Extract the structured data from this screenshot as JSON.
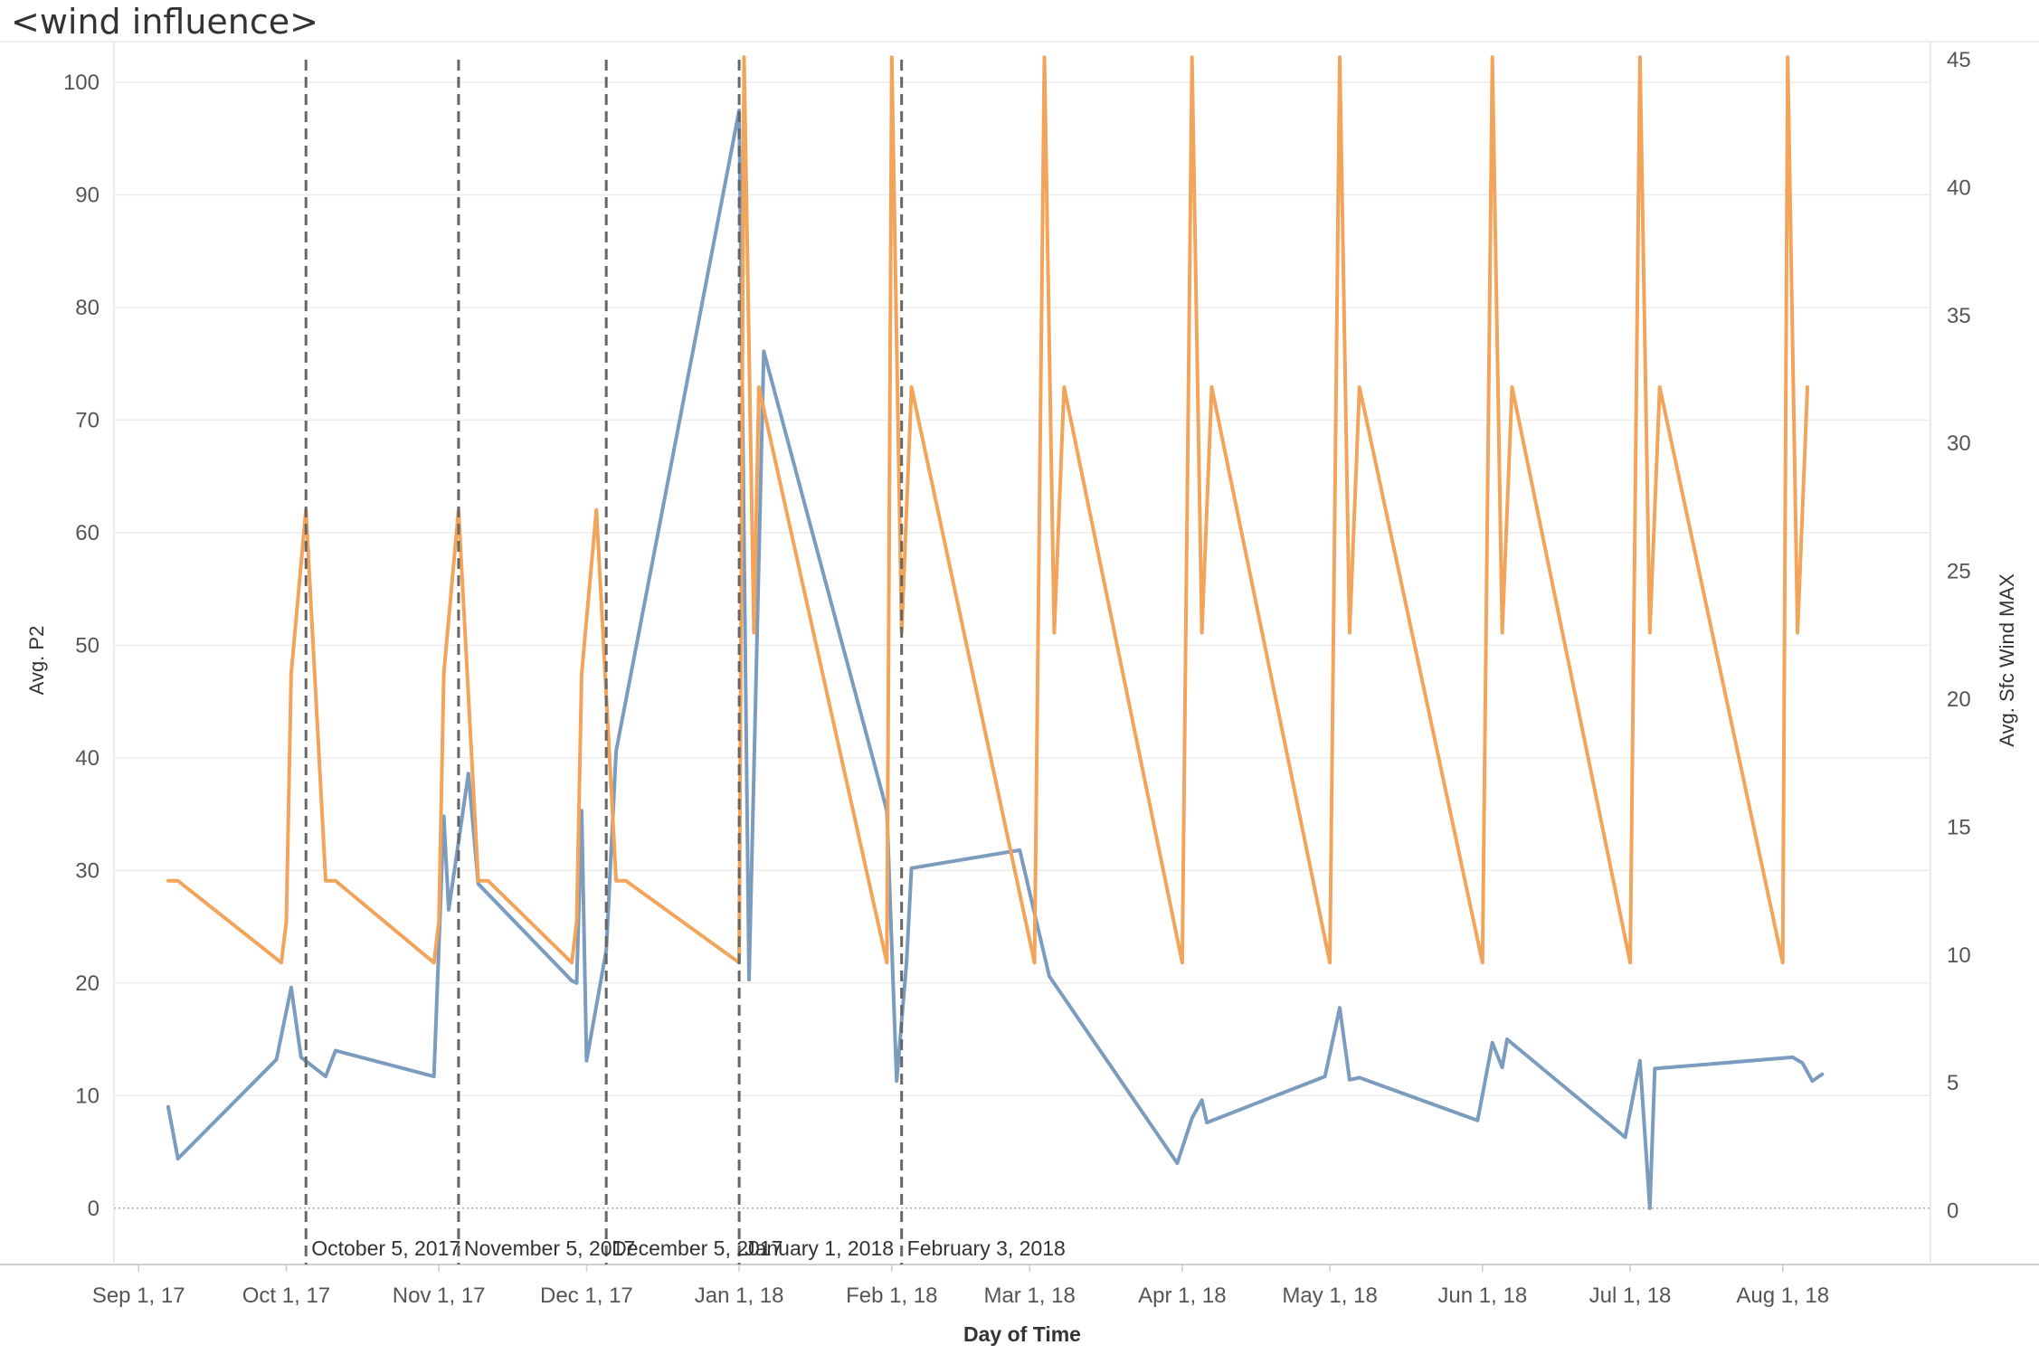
{
  "title": "<wind influence>",
  "chart_data": {
    "type": "line",
    "title": "<wind influence>",
    "xlabel": "Day of Time",
    "ylabel_left": "Avg. P2",
    "ylabel_right": "Avg. Sfc Wind MAX",
    "ylim_left": [
      -5,
      102
    ],
    "ylim_right": [
      -2.1,
      45
    ],
    "yticks_left": [
      0,
      10,
      20,
      30,
      40,
      50,
      60,
      70,
      80,
      90,
      100
    ],
    "yticks_right": [
      0,
      5,
      10,
      15,
      20,
      25,
      30,
      35,
      40,
      45
    ],
    "x_ticks": [
      {
        "date": "2017-09-01",
        "label": "Sep 1, 17"
      },
      {
        "date": "2017-10-01",
        "label": "Oct 1, 17"
      },
      {
        "date": "2017-11-01",
        "label": "Nov 1, 17"
      },
      {
        "date": "2017-12-01",
        "label": "Dec 1, 17"
      },
      {
        "date": "2018-01-01",
        "label": "Jan 1, 18"
      },
      {
        "date": "2018-02-01",
        "label": "Feb 1, 18"
      },
      {
        "date": "2018-03-01",
        "label": "Mar 1, 18"
      },
      {
        "date": "2018-04-01",
        "label": "Apr 1, 18"
      },
      {
        "date": "2018-05-01",
        "label": "May 1, 18"
      },
      {
        "date": "2018-06-01",
        "label": "Jun 1, 18"
      },
      {
        "date": "2018-07-01",
        "label": "Jul 1, 18"
      },
      {
        "date": "2018-08-01",
        "label": "Aug 1, 18"
      }
    ],
    "x_range": [
      "2017-08-27",
      "2018-08-31"
    ],
    "reference_lines": [
      {
        "date": "2017-10-05",
        "label": "October 5, 2017"
      },
      {
        "date": "2017-11-05",
        "label": "November 5, 2017"
      },
      {
        "date": "2017-12-05",
        "label": "December 5, 2017"
      },
      {
        "date": "2018-01-01",
        "label": "January 1, 2018"
      },
      {
        "date": "2018-02-03",
        "label": "February 3, 2018"
      }
    ],
    "series": [
      {
        "name": "Avg. P2",
        "axis": "left",
        "color": "#7b9bbf",
        "points": [
          [
            "2017-09-07",
            9.0
          ],
          [
            "2017-09-09",
            4.4
          ],
          [
            "2017-09-29",
            13.2
          ],
          [
            "2017-10-02",
            19.6
          ],
          [
            "2017-10-04",
            13.4
          ],
          [
            "2017-10-09",
            11.7
          ],
          [
            "2017-10-11",
            14.0
          ],
          [
            "2017-10-31",
            11.7
          ],
          [
            "2017-11-02",
            34.8
          ],
          [
            "2017-11-03",
            26.5
          ],
          [
            "2017-11-07",
            38.6
          ],
          [
            "2017-11-09",
            28.8
          ],
          [
            "2017-11-28",
            20.2
          ],
          [
            "2017-11-29",
            20.0
          ],
          [
            "2017-11-30",
            35.3
          ],
          [
            "2017-12-01",
            13.1
          ],
          [
            "2017-12-05",
            22.9
          ],
          [
            "2017-12-07",
            40.6
          ],
          [
            "2018-01-01",
            97.5
          ],
          [
            "2018-01-03",
            20.3
          ],
          [
            "2018-01-06",
            76.1
          ],
          [
            "2018-01-31",
            35.3
          ],
          [
            "2018-02-02",
            11.3
          ],
          [
            "2018-02-04",
            21.8
          ],
          [
            "2018-02-05",
            30.2
          ],
          [
            "2018-02-27",
            31.8
          ],
          [
            "2018-03-05",
            20.6
          ],
          [
            "2018-03-31",
            4.0
          ],
          [
            "2018-04-03",
            8.0
          ],
          [
            "2018-04-05",
            9.6
          ],
          [
            "2018-04-06",
            7.6
          ],
          [
            "2018-04-30",
            11.7
          ],
          [
            "2018-05-03",
            17.8
          ],
          [
            "2018-05-05",
            11.4
          ],
          [
            "2018-05-07",
            11.6
          ],
          [
            "2018-05-31",
            7.8
          ],
          [
            "2018-06-03",
            14.7
          ],
          [
            "2018-06-05",
            12.5
          ],
          [
            "2018-06-06",
            15.0
          ],
          [
            "2018-06-30",
            6.3
          ],
          [
            "2018-07-03",
            13.1
          ],
          [
            "2018-07-05",
            0.0
          ],
          [
            "2018-07-06",
            12.4
          ],
          [
            "2018-08-03",
            13.4
          ],
          [
            "2018-08-05",
            12.9
          ],
          [
            "2018-08-07",
            11.3
          ],
          [
            "2018-08-09",
            11.9
          ]
        ]
      },
      {
        "name": "Avg. Sfc Wind MAX",
        "axis": "right",
        "color": "#f2a45a",
        "points": [
          [
            "2017-09-07",
            12.9
          ],
          [
            "2017-09-09",
            12.9
          ],
          [
            "2017-09-30",
            9.7
          ],
          [
            "2017-10-01",
            11.3
          ],
          [
            "2017-10-02",
            21.0
          ],
          [
            "2017-10-05",
            27.4
          ],
          [
            "2017-10-09",
            12.9
          ],
          [
            "2017-10-11",
            12.9
          ],
          [
            "2017-10-31",
            9.7
          ],
          [
            "2017-11-01",
            11.3
          ],
          [
            "2017-11-02",
            21.0
          ],
          [
            "2017-11-05",
            27.4
          ],
          [
            "2017-11-09",
            12.9
          ],
          [
            "2017-11-11",
            12.9
          ],
          [
            "2017-11-28",
            9.7
          ],
          [
            "2017-11-29",
            11.3
          ],
          [
            "2017-11-30",
            21.0
          ],
          [
            "2017-12-03",
            27.4
          ],
          [
            "2017-12-07",
            12.9
          ],
          [
            "2017-12-09",
            12.9
          ],
          [
            "2018-01-01",
            9.7
          ],
          [
            "2018-01-02",
            45.1
          ],
          [
            "2018-01-04",
            22.6
          ],
          [
            "2018-01-05",
            32.2
          ],
          [
            "2018-01-31",
            9.7
          ],
          [
            "2018-02-01",
            45.1
          ],
          [
            "2018-02-03",
            22.6
          ],
          [
            "2018-02-05",
            32.2
          ],
          [
            "2018-03-02",
            9.7
          ],
          [
            "2018-03-04",
            45.1
          ],
          [
            "2018-03-06",
            22.6
          ],
          [
            "2018-03-08",
            32.2
          ],
          [
            "2018-04-01",
            9.7
          ],
          [
            "2018-04-03",
            45.1
          ],
          [
            "2018-04-05",
            22.6
          ],
          [
            "2018-04-07",
            32.2
          ],
          [
            "2018-05-01",
            9.7
          ],
          [
            "2018-05-03",
            45.1
          ],
          [
            "2018-05-05",
            22.6
          ],
          [
            "2018-05-07",
            32.2
          ],
          [
            "2018-06-01",
            9.7
          ],
          [
            "2018-06-03",
            45.1
          ],
          [
            "2018-06-05",
            22.6
          ],
          [
            "2018-06-07",
            32.2
          ],
          [
            "2018-07-01",
            9.7
          ],
          [
            "2018-07-03",
            45.1
          ],
          [
            "2018-07-05",
            22.6
          ],
          [
            "2018-07-07",
            32.2
          ],
          [
            "2018-08-01",
            9.7
          ],
          [
            "2018-08-02",
            45.1
          ],
          [
            "2018-08-04",
            22.6
          ],
          [
            "2018-08-06",
            32.2
          ]
        ]
      }
    ],
    "grid": true,
    "zero_line": "dotted"
  }
}
